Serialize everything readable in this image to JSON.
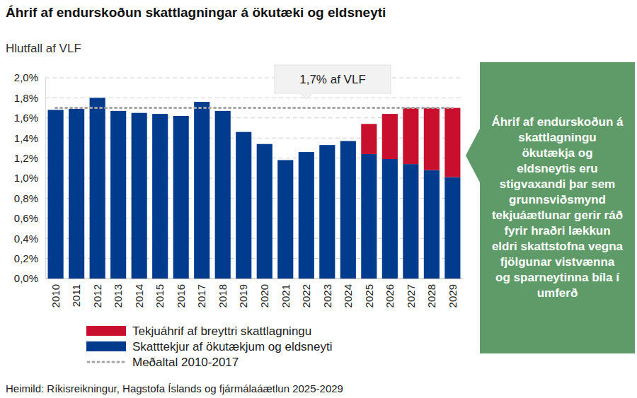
{
  "chart_data": {
    "type": "bar",
    "title": "Áhrif af endurskoðun skattlagningar á ökutæki og eldsneyti",
    "subtitle": "Hlutfall af VLF",
    "categories": [
      "2010",
      "2011",
      "2012",
      "2013",
      "2014",
      "2015",
      "2016",
      "2017",
      "2018",
      "2019",
      "2020",
      "2021",
      "2022",
      "2023",
      "2024",
      "2025",
      "2026",
      "2027",
      "2028",
      "2029"
    ],
    "series": [
      {
        "name": "Skatttekjur af ökutækjum og eldsneyti",
        "color": "#003b8e",
        "values": [
          1.68,
          1.69,
          1.8,
          1.67,
          1.65,
          1.64,
          1.62,
          1.76,
          1.67,
          1.46,
          1.34,
          1.18,
          1.26,
          1.33,
          1.37,
          1.24,
          1.19,
          1.14,
          1.08,
          1.01
        ]
      },
      {
        "name": "Tekjuáhrif af breyttri skattlagningu",
        "color": "#c8102e",
        "values": [
          null,
          null,
          null,
          null,
          null,
          null,
          null,
          null,
          null,
          null,
          null,
          null,
          null,
          null,
          null,
          0.3,
          0.45,
          0.56,
          0.62,
          0.69
        ]
      },
      {
        "name": "Meðaltal 2010-2017",
        "type": "line",
        "line_style": "dotted",
        "color": "#a6a6a6",
        "values": [
          1.7,
          1.7,
          1.7,
          1.7,
          1.7,
          1.7,
          1.7,
          1.7,
          1.7,
          1.7,
          1.7,
          1.7,
          1.7,
          1.7,
          1.7,
          1.7,
          1.7,
          1.7,
          1.7,
          1.7
        ]
      }
    ],
    "stacked": true,
    "ylim": [
      0,
      2.0
    ],
    "yticks": [
      {
        "value": 0,
        "label": "0,0%"
      },
      {
        "value": 0.2,
        "label": "0,2%"
      },
      {
        "value": 0.4,
        "label": "0,4%"
      },
      {
        "value": 0.6,
        "label": "0,6%"
      },
      {
        "value": 0.8,
        "label": "0,8%"
      },
      {
        "value": 1.0,
        "label": "1,0%"
      },
      {
        "value": 1.2,
        "label": "1,2%"
      },
      {
        "value": 1.4,
        "label": "1,4%"
      },
      {
        "value": 1.6,
        "label": "1,6%"
      },
      {
        "value": 1.8,
        "label": "1,8%"
      },
      {
        "value": 2.0,
        "label": "2,0%"
      }
    ],
    "grid": true,
    "legend": "bottom",
    "annotations": [
      "1,7% af VLF",
      "Áhrif af endurskoðun á skattlagningu ökutækja og eldsneytis eru stigvaxandi þar sem grunnsviðsmynd tekjuáætlunar gerir ráð fyrir hraðri lækkun eldri skattstofna vegna fjölgunar vistvænna og sparneytinna bíla í umferð"
    ],
    "source": "Heimild: Ríkisreikningur, Hagstofa Íslands og fjármálaáætlun 2025-2029"
  }
}
